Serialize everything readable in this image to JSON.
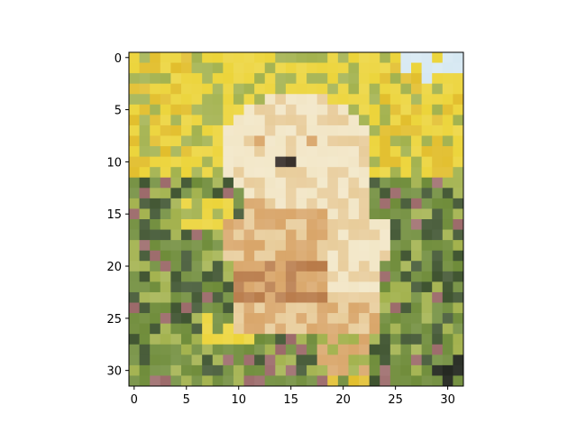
{
  "chart_data": {
    "type": "heatmap",
    "title": "",
    "xlabel": "",
    "ylabel": "",
    "xlim": [
      -0.5,
      31.5
    ],
    "ylim": [
      31.5,
      -0.5
    ],
    "y_axis_direction": "down",
    "grid": false,
    "legend": "none",
    "x_ticks": [
      0,
      5,
      10,
      15,
      20,
      25,
      30
    ],
    "x_tick_labels": [
      "0",
      "5",
      "10",
      "15",
      "20",
      "25",
      "30"
    ],
    "y_ticks": [
      0,
      5,
      10,
      15,
      20,
      25,
      30
    ],
    "y_tick_labels": [
      "0",
      "5",
      "10",
      "15",
      "20",
      "25",
      "30"
    ],
    "image": {
      "rows": 32,
      "cols": 32,
      "content": "pixelated photo of a cream-and-tan puppy sitting in green grass with yellow flowers; pale sky in the top-right corner",
      "palette": {
        "sky": "#d6e8f2",
        "yellow": "#ecd43a",
        "gold": "#e2be2c",
        "dark_green": "#3f5430",
        "green": "#6f8c3a",
        "light_green": "#a3b24e",
        "cream": "#f2e6c6",
        "beige": "#e8cc9a",
        "tan": "#d9a66a",
        "brown": "#b87a48",
        "nose": "#2d2520",
        "shadow": "#22261e",
        "pink": "#9c6a6a"
      }
    }
  }
}
